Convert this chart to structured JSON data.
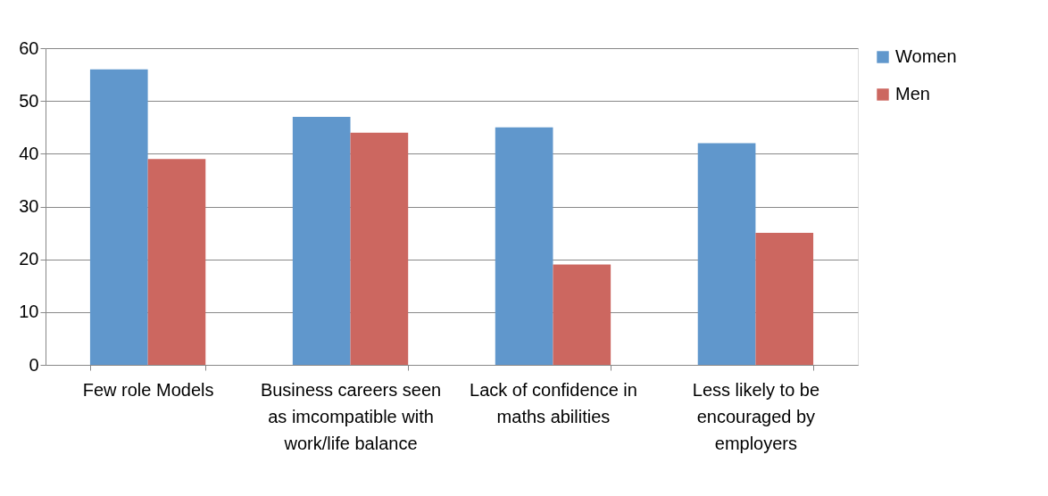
{
  "chart_data": {
    "type": "bar",
    "categories": [
      "Few role Models",
      "Business careers seen as imcompatible with work/life balance",
      "Lack of confidence in maths abilities",
      "Less likely to be encouraged by employers"
    ],
    "series": [
      {
        "name": "Women",
        "color": "#6097cc",
        "values": [
          56,
          47,
          45,
          42
        ]
      },
      {
        "name": "Men",
        "color": "#cc6760",
        "values": [
          39,
          44,
          19,
          25
        ]
      }
    ],
    "ylim": [
      0,
      60
    ],
    "yticks": [
      0,
      10,
      20,
      30,
      40,
      50,
      60
    ],
    "grid": "y",
    "legend": "right"
  }
}
